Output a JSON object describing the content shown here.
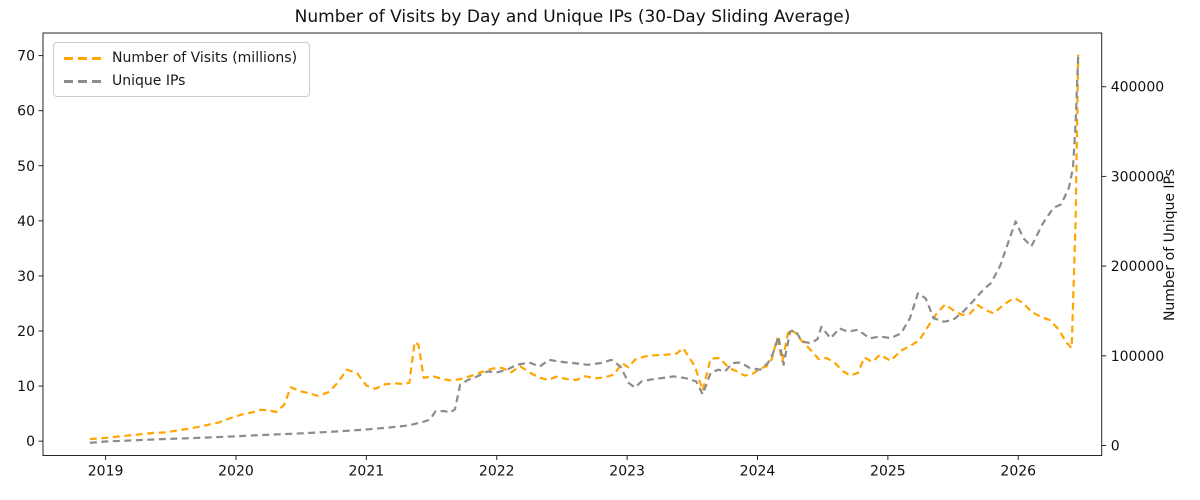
{
  "title": "Number of Visits by Day and Unique IPs (30-Day Sliding Average)",
  "legend": {
    "items": [
      {
        "label": "Number of Visits (millions)",
        "color": "#FFA500"
      },
      {
        "label": "Unique IPs",
        "color": "#8c8c8c"
      }
    ]
  },
  "axes": {
    "right_ylabel": "Number of Unique IPs",
    "x_ticks": [
      {
        "value": 2019,
        "label": "2019"
      },
      {
        "value": 2020,
        "label": "2020"
      },
      {
        "value": 2021,
        "label": "2021"
      },
      {
        "value": 2022,
        "label": "2022"
      },
      {
        "value": 2023,
        "label": "2023"
      },
      {
        "value": 2024,
        "label": "2024"
      },
      {
        "value": 2025,
        "label": "2025"
      },
      {
        "value": 2026,
        "label": "2026"
      }
    ],
    "left_ticks": [
      {
        "value": 0,
        "label": "0"
      },
      {
        "value": 10,
        "label": "10"
      },
      {
        "value": 20,
        "label": "20"
      },
      {
        "value": 30,
        "label": "30"
      },
      {
        "value": 40,
        "label": "40"
      },
      {
        "value": 50,
        "label": "50"
      },
      {
        "value": 60,
        "label": "60"
      },
      {
        "value": 70,
        "label": "70"
      }
    ],
    "right_ticks": [
      {
        "value": 0,
        "label": "0"
      },
      {
        "value": 100000,
        "label": "100000"
      },
      {
        "value": 200000,
        "label": "200000"
      },
      {
        "value": 300000,
        "label": "300000"
      },
      {
        "value": 400000,
        "label": "400000"
      }
    ]
  },
  "chart_data": {
    "type": "line",
    "title": "Number of Visits by Day and Unique IPs (30-Day Sliding Average)",
    "x_unit": "year (daily data, 30-day sliding average)",
    "xlim": [
      2018.52,
      2026.64
    ],
    "ylim_left": [
      -2.6,
      74.1
    ],
    "ylim_right": [
      -11150,
      459900
    ],
    "grid": false,
    "legend_position": "upper left",
    "series": [
      {
        "name": "Number of Visits (millions)",
        "axis": "left",
        "color": "#FFA500",
        "linestyle": "dashed",
        "points": [
          [
            2018.88,
            0.4
          ],
          [
            2018.96,
            0.5
          ],
          [
            2019.04,
            0.7
          ],
          [
            2019.12,
            0.9
          ],
          [
            2019.21,
            1.1
          ],
          [
            2019.29,
            1.3
          ],
          [
            2019.37,
            1.5
          ],
          [
            2019.46,
            1.6
          ],
          [
            2019.54,
            1.9
          ],
          [
            2019.62,
            2.2
          ],
          [
            2019.71,
            2.6
          ],
          [
            2019.79,
            3.0
          ],
          [
            2019.87,
            3.4
          ],
          [
            2019.96,
            4.2
          ],
          [
            2020.04,
            4.8
          ],
          [
            2020.12,
            5.2
          ],
          [
            2020.19,
            5.7
          ],
          [
            2020.25,
            5.6
          ],
          [
            2020.31,
            5.3
          ],
          [
            2020.37,
            6.6
          ],
          [
            2020.42,
            9.8
          ],
          [
            2020.49,
            9.1
          ],
          [
            2020.56,
            8.7
          ],
          [
            2020.63,
            8.2
          ],
          [
            2020.71,
            8.9
          ],
          [
            2020.78,
            10.6
          ],
          [
            2020.85,
            13.0
          ],
          [
            2020.93,
            12.3
          ],
          [
            2021.0,
            10.1
          ],
          [
            2021.07,
            9.5
          ],
          [
            2021.14,
            10.3
          ],
          [
            2021.21,
            10.5
          ],
          [
            2021.28,
            10.4
          ],
          [
            2021.33,
            10.6
          ],
          [
            2021.37,
            18.0
          ],
          [
            2021.4,
            17.5
          ],
          [
            2021.44,
            11.5
          ],
          [
            2021.51,
            11.8
          ],
          [
            2021.58,
            11.3
          ],
          [
            2021.65,
            11.0
          ],
          [
            2021.73,
            11.3
          ],
          [
            2021.81,
            11.9
          ],
          [
            2021.89,
            12.6
          ],
          [
            2021.97,
            13.2
          ],
          [
            2022.04,
            13.3
          ],
          [
            2022.11,
            12.5
          ],
          [
            2022.18,
            13.6
          ],
          [
            2022.25,
            12.5
          ],
          [
            2022.32,
            11.6
          ],
          [
            2022.39,
            11.1
          ],
          [
            2022.46,
            11.7
          ],
          [
            2022.53,
            11.3
          ],
          [
            2022.61,
            11.1
          ],
          [
            2022.68,
            11.8
          ],
          [
            2022.75,
            11.4
          ],
          [
            2022.83,
            11.6
          ],
          [
            2022.9,
            12.1
          ],
          [
            2022.96,
            14.2
          ],
          [
            2023.01,
            13.4
          ],
          [
            2023.06,
            14.8
          ],
          [
            2023.14,
            15.4
          ],
          [
            2023.22,
            15.6
          ],
          [
            2023.3,
            15.7
          ],
          [
            2023.38,
            15.9
          ],
          [
            2023.43,
            16.9
          ],
          [
            2023.47,
            15.4
          ],
          [
            2023.52,
            13.6
          ],
          [
            2023.58,
            9.2
          ],
          [
            2023.64,
            15.0
          ],
          [
            2023.71,
            15.1
          ],
          [
            2023.78,
            13.3
          ],
          [
            2023.84,
            12.7
          ],
          [
            2023.9,
            11.9
          ],
          [
            2023.96,
            12.2
          ],
          [
            2024.02,
            13.2
          ],
          [
            2024.07,
            13.6
          ],
          [
            2024.11,
            14.9
          ],
          [
            2024.15,
            18.6
          ],
          [
            2024.19,
            14.6
          ],
          [
            2024.24,
            20.3
          ],
          [
            2024.29,
            19.7
          ],
          [
            2024.34,
            18.2
          ],
          [
            2024.41,
            16.5
          ],
          [
            2024.47,
            14.9
          ],
          [
            2024.53,
            15.1
          ],
          [
            2024.59,
            14.3
          ],
          [
            2024.65,
            12.8
          ],
          [
            2024.71,
            11.9
          ],
          [
            2024.77,
            12.4
          ],
          [
            2024.82,
            15.2
          ],
          [
            2024.88,
            14.4
          ],
          [
            2024.94,
            15.7
          ],
          [
            2025.02,
            14.6
          ],
          [
            2025.1,
            16.4
          ],
          [
            2025.17,
            17.3
          ],
          [
            2025.24,
            18.3
          ],
          [
            2025.31,
            20.9
          ],
          [
            2025.38,
            23.4
          ],
          [
            2025.44,
            24.8
          ],
          [
            2025.5,
            23.8
          ],
          [
            2025.57,
            22.9
          ],
          [
            2025.63,
            23.2
          ],
          [
            2025.69,
            24.7
          ],
          [
            2025.75,
            23.8
          ],
          [
            2025.81,
            23.2
          ],
          [
            2025.88,
            24.6
          ],
          [
            2025.94,
            25.6
          ],
          [
            2025.98,
            25.9
          ],
          [
            2026.04,
            25.0
          ],
          [
            2026.1,
            23.5
          ],
          [
            2026.17,
            22.6
          ],
          [
            2026.24,
            22.0
          ],
          [
            2026.31,
            20.3
          ],
          [
            2026.37,
            17.9
          ],
          [
            2026.41,
            16.9
          ],
          [
            2026.44,
            40.0
          ],
          [
            2026.46,
            70.2
          ]
        ]
      },
      {
        "name": "Unique IPs",
        "axis": "right",
        "color": "#8c8c8c",
        "linestyle": "dashed",
        "points": [
          [
            2018.88,
            3000
          ],
          [
            2019.0,
            4500
          ],
          [
            2019.17,
            5500
          ],
          [
            2019.33,
            6500
          ],
          [
            2019.5,
            7500
          ],
          [
            2019.67,
            8300
          ],
          [
            2019.83,
            9300
          ],
          [
            2020.0,
            10300
          ],
          [
            2020.17,
            11500
          ],
          [
            2020.33,
            12500
          ],
          [
            2020.5,
            13500
          ],
          [
            2020.67,
            14800
          ],
          [
            2020.83,
            16200
          ],
          [
            2021.0,
            17800
          ],
          [
            2021.17,
            20000
          ],
          [
            2021.33,
            22500
          ],
          [
            2021.44,
            26500
          ],
          [
            2021.49,
            29000
          ],
          [
            2021.53,
            38000
          ],
          [
            2021.6,
            38500
          ],
          [
            2021.64,
            36500
          ],
          [
            2021.68,
            40500
          ],
          [
            2021.72,
            68000
          ],
          [
            2021.78,
            73000
          ],
          [
            2021.85,
            77000
          ],
          [
            2021.93,
            82500
          ],
          [
            2022.0,
            81500
          ],
          [
            2022.08,
            84500
          ],
          [
            2022.15,
            90000
          ],
          [
            2022.25,
            92500
          ],
          [
            2022.33,
            88000
          ],
          [
            2022.4,
            95500
          ],
          [
            2022.48,
            93500
          ],
          [
            2022.58,
            92000
          ],
          [
            2022.7,
            90000
          ],
          [
            2022.8,
            92000
          ],
          [
            2022.88,
            95500
          ],
          [
            2022.95,
            88000
          ],
          [
            2023.01,
            70000
          ],
          [
            2023.06,
            64500
          ],
          [
            2023.11,
            71500
          ],
          [
            2023.18,
            73500
          ],
          [
            2023.26,
            75000
          ],
          [
            2023.36,
            77000
          ],
          [
            2023.45,
            75000
          ],
          [
            2023.53,
            71500
          ],
          [
            2023.58,
            57000
          ],
          [
            2023.64,
            81000
          ],
          [
            2023.7,
            84500
          ],
          [
            2023.75,
            82500
          ],
          [
            2023.81,
            92000
          ],
          [
            2023.87,
            92500
          ],
          [
            2023.94,
            86500
          ],
          [
            2024.02,
            84500
          ],
          [
            2024.08,
            92000
          ],
          [
            2024.12,
            103000
          ],
          [
            2024.16,
            121500
          ],
          [
            2024.2,
            90000
          ],
          [
            2024.25,
            127000
          ],
          [
            2024.29,
            128500
          ],
          [
            2024.34,
            116000
          ],
          [
            2024.41,
            114000
          ],
          [
            2024.46,
            118500
          ],
          [
            2024.49,
            132500
          ],
          [
            2024.56,
            119500
          ],
          [
            2024.63,
            130500
          ],
          [
            2024.69,
            127000
          ],
          [
            2024.77,
            129000
          ],
          [
            2024.86,
            119500
          ],
          [
            2024.94,
            121500
          ],
          [
            2025.02,
            119700
          ],
          [
            2025.1,
            125000
          ],
          [
            2025.17,
            142000
          ],
          [
            2025.23,
            169700
          ],
          [
            2025.29,
            164000
          ],
          [
            2025.35,
            142000
          ],
          [
            2025.43,
            138000
          ],
          [
            2025.5,
            140000
          ],
          [
            2025.58,
            149500
          ],
          [
            2025.66,
            162000
          ],
          [
            2025.73,
            173500
          ],
          [
            2025.79,
            181000
          ],
          [
            2025.86,
            200000
          ],
          [
            2025.92,
            225000
          ],
          [
            2025.98,
            250000
          ],
          [
            2026.04,
            231000
          ],
          [
            2026.1,
            222000
          ],
          [
            2026.19,
            248000
          ],
          [
            2026.27,
            265000
          ],
          [
            2026.33,
            269000
          ],
          [
            2026.39,
            288000
          ],
          [
            2026.42,
            310000
          ],
          [
            2026.44,
            360000
          ],
          [
            2026.46,
            435000
          ]
        ]
      }
    ]
  }
}
